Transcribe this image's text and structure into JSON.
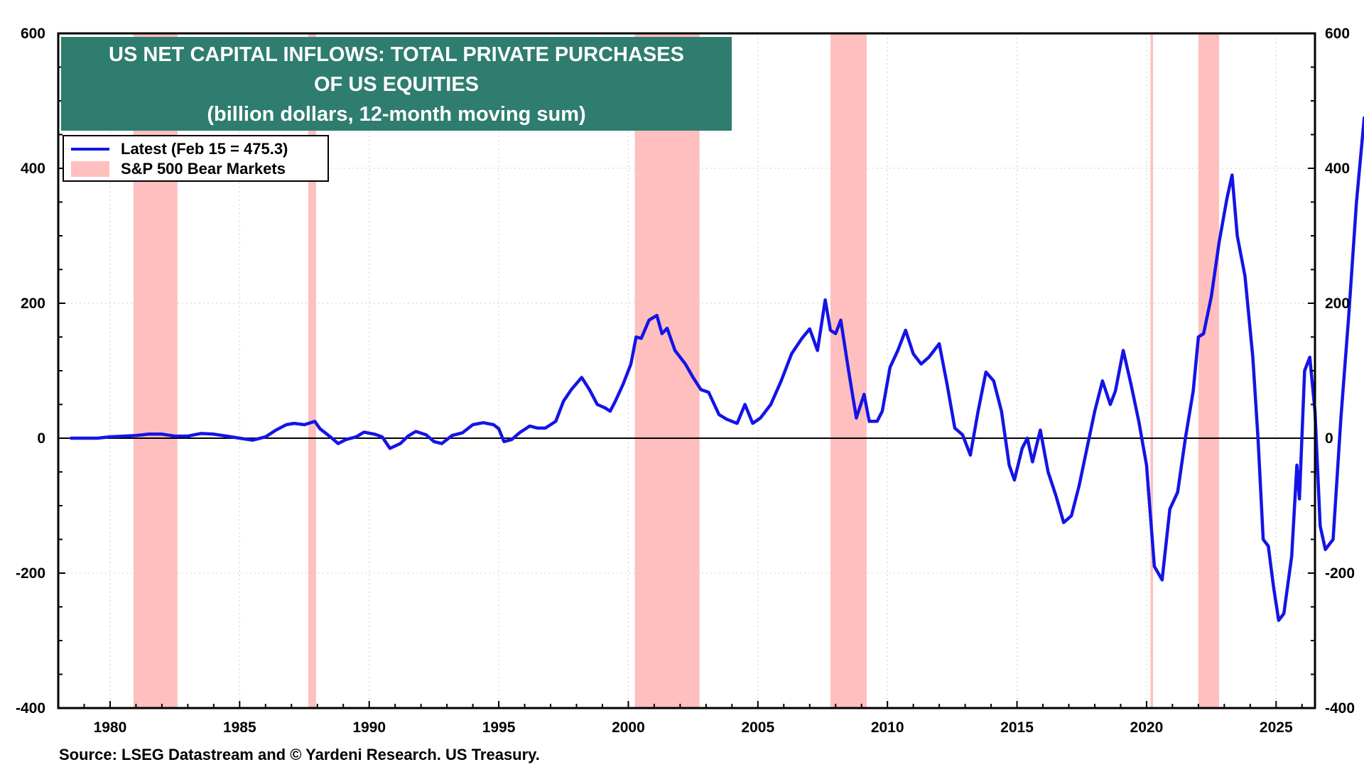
{
  "chart_data": {
    "type": "line",
    "title": "US NET CAPITAL INFLOWS: TOTAL PRIVATE PURCHASES OF US EQUITIES",
    "title_lines": [
      "US NET CAPITAL INFLOWS: TOTAL PRIVATE PURCHASES",
      "OF US EQUITIES"
    ],
    "subtitle": "(billion dollars, 12-month moving sum)",
    "xlabel": "",
    "ylabel": "",
    "xlim": [
      1978,
      2026.5
    ],
    "ylim": [
      -400,
      600
    ],
    "x_ticks": [
      1980,
      1985,
      1990,
      1995,
      2000,
      2005,
      2010,
      2015,
      2020,
      2025
    ],
    "y_ticks": [
      -400,
      -200,
      0,
      200,
      400,
      600
    ],
    "y_tick_labels": [
      "-400",
      "-200",
      "0",
      "200",
      "400",
      "600"
    ],
    "grid": true,
    "legend_position": "top-left",
    "legend": {
      "series_label": "Latest (Feb 15 = 475.3)",
      "shade_label": "S&P 500 Bear Markets"
    },
    "bear_markets": [
      [
        1980.9,
        1982.6
      ],
      [
        1987.65,
        1987.95
      ],
      [
        2000.25,
        2002.75
      ],
      [
        2007.8,
        2009.2
      ],
      [
        2020.15,
        2020.25
      ],
      [
        2022.0,
        2022.8
      ]
    ],
    "series": [
      {
        "name": "Latest (Feb 15 = 475.3)",
        "color": "#1414e6",
        "points": [
          [
            1978.5,
            0
          ],
          [
            1979.5,
            0
          ],
          [
            1980,
            2
          ],
          [
            1981,
            4
          ],
          [
            1981.5,
            6
          ],
          [
            1982,
            6
          ],
          [
            1982.5,
            3
          ],
          [
            1983,
            3
          ],
          [
            1983.5,
            7
          ],
          [
            1984,
            6
          ],
          [
            1984.5,
            3
          ],
          [
            1985,
            0
          ],
          [
            1985.5,
            -3
          ],
          [
            1986,
            2
          ],
          [
            1986.4,
            12
          ],
          [
            1986.8,
            20
          ],
          [
            1987.1,
            22
          ],
          [
            1987.5,
            20
          ],
          [
            1987.9,
            25
          ],
          [
            1988.1,
            14
          ],
          [
            1988.5,
            2
          ],
          [
            1988.8,
            -8
          ],
          [
            1989.1,
            -2
          ],
          [
            1989.5,
            2
          ],
          [
            1989.8,
            9
          ],
          [
            1990.2,
            6
          ],
          [
            1990.5,
            2
          ],
          [
            1990.8,
            -15
          ],
          [
            1991.2,
            -8
          ],
          [
            1991.5,
            3
          ],
          [
            1991.8,
            10
          ],
          [
            1992.2,
            5
          ],
          [
            1992.5,
            -5
          ],
          [
            1992.8,
            -8
          ],
          [
            1993.2,
            4
          ],
          [
            1993.6,
            8
          ],
          [
            1994,
            20
          ],
          [
            1994.4,
            23
          ],
          [
            1994.8,
            20
          ],
          [
            1995,
            14
          ],
          [
            1995.2,
            -5
          ],
          [
            1995.5,
            -2
          ],
          [
            1995.8,
            8
          ],
          [
            1996.2,
            18
          ],
          [
            1996.5,
            15
          ],
          [
            1996.8,
            15
          ],
          [
            1997.2,
            25
          ],
          [
            1997.5,
            55
          ],
          [
            1997.8,
            72
          ],
          [
            1998.2,
            90
          ],
          [
            1998.5,
            72
          ],
          [
            1998.8,
            50
          ],
          [
            1999.1,
            45
          ],
          [
            1999.3,
            40
          ],
          [
            1999.5,
            55
          ],
          [
            1999.8,
            80
          ],
          [
            2000.1,
            110
          ],
          [
            2000.3,
            150
          ],
          [
            2000.5,
            148
          ],
          [
            2000.8,
            175
          ],
          [
            2001.1,
            182
          ],
          [
            2001.3,
            155
          ],
          [
            2001.5,
            163
          ],
          [
            2001.8,
            130
          ],
          [
            2002.2,
            110
          ],
          [
            2002.5,
            90
          ],
          [
            2002.8,
            72
          ],
          [
            2003.1,
            68
          ],
          [
            2003.5,
            35
          ],
          [
            2003.8,
            28
          ],
          [
            2004.2,
            22
          ],
          [
            2004.5,
            50
          ],
          [
            2004.8,
            22
          ],
          [
            2005.1,
            30
          ],
          [
            2005.5,
            50
          ],
          [
            2005.9,
            85
          ],
          [
            2006.3,
            125
          ],
          [
            2006.7,
            148
          ],
          [
            2007,
            162
          ],
          [
            2007.3,
            130
          ],
          [
            2007.6,
            205
          ],
          [
            2007.8,
            160
          ],
          [
            2008,
            155
          ],
          [
            2008.2,
            175
          ],
          [
            2008.5,
            100
          ],
          [
            2008.8,
            30
          ],
          [
            2009.1,
            65
          ],
          [
            2009.3,
            25
          ],
          [
            2009.6,
            25
          ],
          [
            2009.8,
            40
          ],
          [
            2010.1,
            105
          ],
          [
            2010.4,
            130
          ],
          [
            2010.7,
            160
          ],
          [
            2011,
            125
          ],
          [
            2011.3,
            110
          ],
          [
            2011.6,
            120
          ],
          [
            2012,
            140
          ],
          [
            2012.3,
            80
          ],
          [
            2012.6,
            15
          ],
          [
            2012.9,
            5
          ],
          [
            2013.2,
            -25
          ],
          [
            2013.5,
            40
          ],
          [
            2013.8,
            98
          ],
          [
            2014.1,
            85
          ],
          [
            2014.4,
            40
          ],
          [
            2014.7,
            -40
          ],
          [
            2014.9,
            -62
          ],
          [
            2015.2,
            -15
          ],
          [
            2015.4,
            0
          ],
          [
            2015.6,
            -35
          ],
          [
            2015.9,
            12
          ],
          [
            2016.2,
            -50
          ],
          [
            2016.5,
            -85
          ],
          [
            2016.8,
            -125
          ],
          [
            2017.1,
            -115
          ],
          [
            2017.4,
            -70
          ],
          [
            2017.7,
            -15
          ],
          [
            2018,
            40
          ],
          [
            2018.3,
            85
          ],
          [
            2018.6,
            50
          ],
          [
            2018.8,
            70
          ],
          [
            2019.1,
            130
          ],
          [
            2019.4,
            80
          ],
          [
            2019.7,
            25
          ],
          [
            2020,
            -40
          ],
          [
            2020.3,
            -190
          ],
          [
            2020.6,
            -210
          ],
          [
            2020.9,
            -105
          ],
          [
            2021.2,
            -80
          ],
          [
            2021.5,
            0
          ],
          [
            2021.8,
            70
          ],
          [
            2022,
            150
          ],
          [
            2022.2,
            155
          ],
          [
            2022.5,
            210
          ],
          [
            2022.8,
            290
          ],
          [
            2023.1,
            355
          ],
          [
            2023.3,
            390
          ],
          [
            2023.5,
            300
          ],
          [
            2023.8,
            240
          ],
          [
            2024.1,
            120
          ],
          [
            2024.3,
            0
          ],
          [
            2024.5,
            -150
          ],
          [
            2024.7,
            -160
          ],
          [
            2024.9,
            -220
          ],
          [
            2025.1,
            -270
          ],
          [
            2025.3,
            -260
          ],
          [
            2025.6,
            -175
          ],
          [
            2025.8,
            -40
          ],
          [
            2025.9,
            -90
          ],
          [
            2026.1,
            100
          ],
          [
            2026.3,
            120
          ],
          [
            2026.5,
            40
          ],
          [
            2026.7,
            -130
          ],
          [
            2026.9,
            -165
          ],
          [
            2027.2,
            -150
          ],
          [
            2027.5,
            30
          ],
          [
            2027.8,
            180
          ],
          [
            2028.1,
            350
          ],
          [
            2028.4,
            475
          ]
        ]
      }
    ]
  },
  "source_text": "Source: LSEG Datastream and © Yardeni Research. US Treasury."
}
